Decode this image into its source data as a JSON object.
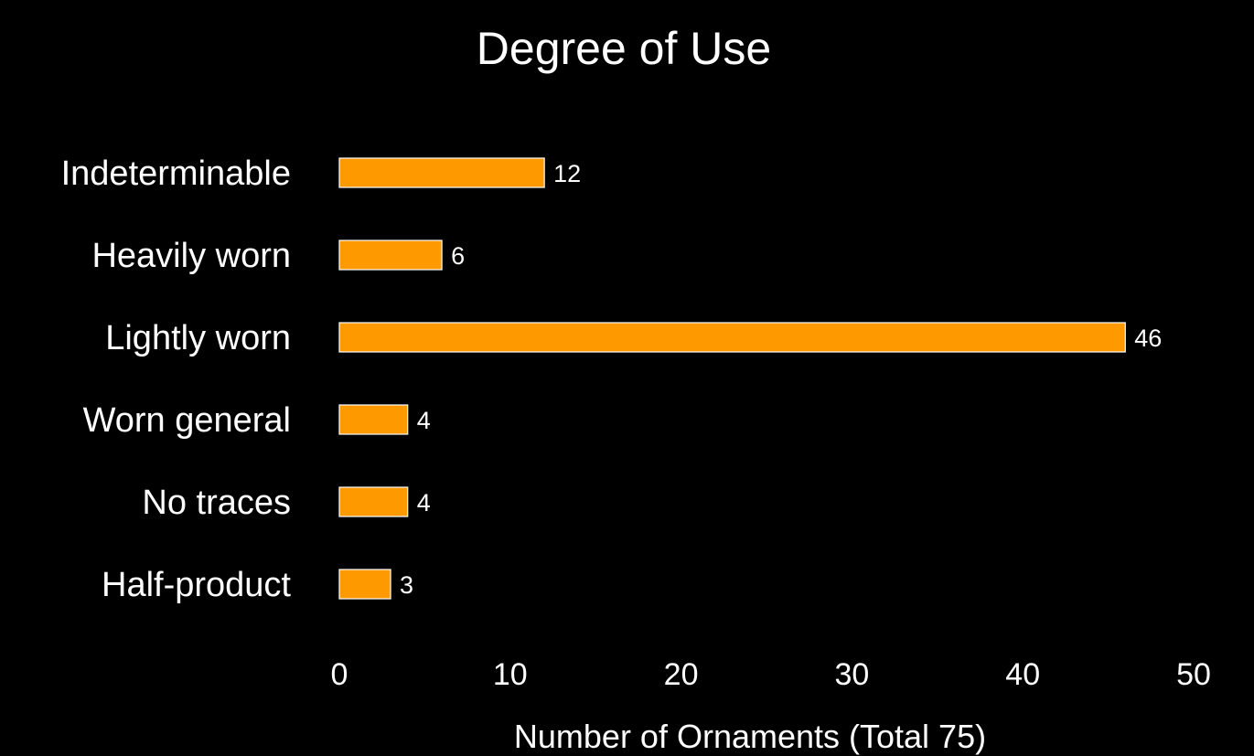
{
  "chart_data": {
    "type": "bar",
    "orientation": "horizontal",
    "title": "Degree of Use",
    "xlabel": "Number of Ornaments (Total 75)",
    "ylabel": "",
    "categories": [
      "Indeterminable",
      "Heavily worn",
      "Lightly worn",
      "Worn general",
      "No traces",
      "Half-product"
    ],
    "values": [
      12,
      6,
      46,
      4,
      4,
      3
    ],
    "data_labels": [
      "12",
      "6",
      "46",
      "4",
      "4",
      "3"
    ],
    "xlim": [
      0,
      50
    ],
    "x_ticks": [
      0,
      10,
      20,
      30,
      40,
      50
    ],
    "x_tick_labels": [
      "0",
      "10",
      "20",
      "30",
      "40",
      "50"
    ],
    "grid": false,
    "legend": "none",
    "colors": {
      "background": "#000000",
      "bar": "#ff9900",
      "text": "#ffffff"
    }
  }
}
